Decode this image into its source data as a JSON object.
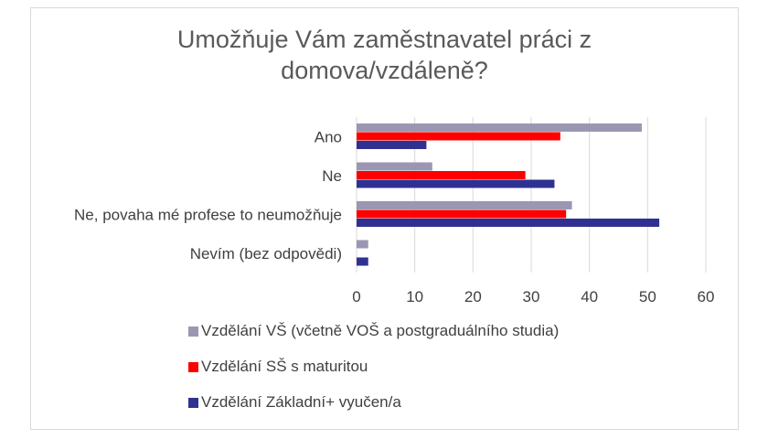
{
  "colors": {
    "vs": "#9b97b2",
    "ss": "#ff0000",
    "zakladni": "#2e3192",
    "grid": "#d9d9d9",
    "text": "#404040"
  },
  "chart_data": {
    "type": "bar",
    "orientation": "horizontal",
    "title": "Umožňuje Vám zaměstnavatel práci z domova/vzdáleně?",
    "title_lines": [
      "Umožňuje Vám zaměstnavatel práci z",
      "domova/vzdáleně?"
    ],
    "categories": [
      "Ano",
      "Ne",
      "Ne, povaha mé profese to neumožňuje",
      "Nevím (bez odpovědi)"
    ],
    "series": [
      {
        "name": "Vzdělání VŠ (včetně VOŠ a postgraduálního studia)",
        "color": "#9b97b2",
        "values": [
          49,
          13,
          37,
          2
        ]
      },
      {
        "name": "Vzdělání SŠ s maturitou",
        "color": "#ff0000",
        "values": [
          35,
          29,
          36,
          0
        ]
      },
      {
        "name": "Vzdělání Základní+ vyučen/a",
        "color": "#2e3192",
        "values": [
          12,
          34,
          52,
          2
        ]
      }
    ],
    "xlim": [
      0,
      60
    ],
    "xticks": [
      "0",
      "10",
      "20",
      "30",
      "40",
      "50",
      "60"
    ],
    "grid": true,
    "legend_position": "bottom"
  }
}
